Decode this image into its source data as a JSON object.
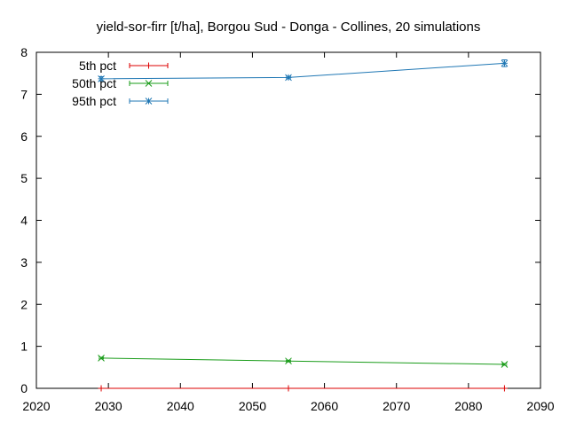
{
  "chart_data": {
    "type": "line",
    "title": "yield-sor-firr [t/ha], Borgou Sud - Donga - Collines, 20 simulations",
    "xlabel": "",
    "ylabel": "",
    "xlim": [
      2020,
      2090
    ],
    "ylim": [
      0,
      8
    ],
    "x_ticks": [
      "2020",
      "2030",
      "2040",
      "2050",
      "2060",
      "2070",
      "2080",
      "2090"
    ],
    "y_ticks": [
      "0",
      "1",
      "2",
      "3",
      "4",
      "5",
      "6",
      "7",
      "8"
    ],
    "x_tick_values": [
      2020,
      2030,
      2040,
      2050,
      2060,
      2070,
      2080,
      2090
    ],
    "y_tick_values": [
      0,
      1,
      2,
      3,
      4,
      5,
      6,
      7,
      8
    ],
    "grid": false,
    "legend_position": "top-left",
    "x": [
      2029,
      2055,
      2085
    ],
    "series": [
      {
        "name": "5th pct",
        "color": "#dd0000",
        "marker": "plus",
        "values": [
          0.0,
          0.0,
          0.0
        ],
        "err_low": [
          0.0,
          0.0,
          0.0
        ],
        "err_high": [
          0.0,
          0.0,
          0.0
        ]
      },
      {
        "name": "50th pct",
        "color": "#1a9c1a",
        "marker": "cross",
        "values": [
          0.72,
          0.65,
          0.57
        ],
        "err_low": [
          0.02,
          0.02,
          0.02
        ],
        "err_high": [
          0.02,
          0.02,
          0.02
        ]
      },
      {
        "name": "95th pct",
        "color": "#1f77b4",
        "marker": "star",
        "values": [
          7.37,
          7.4,
          7.74
        ],
        "err_low": [
          0.05,
          0.03,
          0.08
        ],
        "err_high": [
          0.05,
          0.03,
          0.08
        ]
      }
    ]
  }
}
